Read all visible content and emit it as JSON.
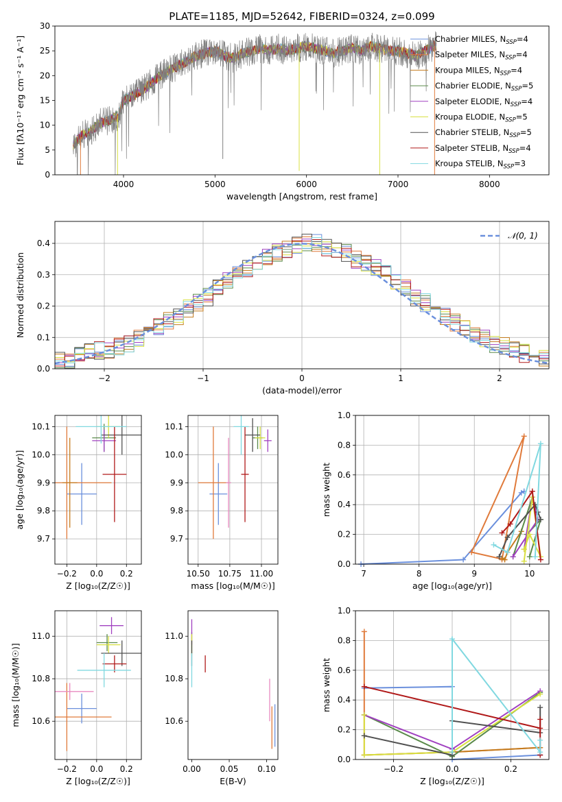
{
  "figure_title": "PLATE=1185, MJD=52642, FIBERID=0324, z=0.099",
  "colors": {
    "Chabrier MILES": "#6a8fdc",
    "Salpeter MILES": "#e07a3a",
    "Kroupa MILES": "#c47c1f",
    "Chabrier ELODIE": "#5a8a4a",
    "Salpeter ELODIE": "#a040c0",
    "Kroupa ELODIE": "#d8e040",
    "Chabrier STELIB": "#505050",
    "Salpeter STELIB": "#b01818",
    "Kroupa STELIB": "#80d8e0",
    "normal": "#6a8fdc",
    "pink": "#e88ac0"
  },
  "chart_data": [
    {
      "panel": "spectrum",
      "type": "line",
      "title": "PLATE=1185, MJD=52642, FIBERID=0324, z=0.099",
      "xlabel": "wavelength [Angstrom, rest frame]",
      "ylabel": "Flux [fλ10⁻¹⁷ erg cm⁻² s⁻¹ A⁻¹]",
      "xlim": [
        3250,
        8650
      ],
      "ylim": [
        0,
        30
      ],
      "xticks": [
        4000,
        5000,
        6000,
        7000,
        8000
      ],
      "yticks": [
        0,
        5,
        10,
        15,
        20,
        25,
        30
      ],
      "grid": false,
      "legend_position": "right",
      "continuum": {
        "x": [
          3450,
          3550,
          3650,
          3750,
          3850,
          3950,
          4000,
          4100,
          4200,
          4300,
          4400,
          4500,
          4600,
          4700,
          4800,
          4900,
          5000,
          5100,
          5200,
          5300,
          5400,
          5500,
          5600,
          5700,
          5800,
          5900,
          6000,
          6100,
          6200,
          6300,
          6400,
          6500,
          6600,
          6700,
          6800,
          6900,
          7000,
          7100,
          7200,
          7300,
          7400
        ],
        "y": [
          6,
          8,
          9,
          10.5,
          11,
          12,
          15,
          16,
          17,
          18.5,
          20,
          21,
          22,
          23,
          24,
          24.5,
          25,
          24,
          23.5,
          24.5,
          25,
          25.5,
          25,
          25.5,
          25,
          25.5,
          26,
          25.5,
          25,
          24.5,
          25,
          25.5,
          25,
          26,
          25.5,
          25,
          25,
          24.5,
          24,
          25,
          26
        ]
      },
      "series": [
        {
          "name": "Chabrier MILES, N_SSP=4",
          "label_main": "Chabrier MILES, N",
          "label_sub": "SSP",
          "label_tail": "=4"
        },
        {
          "name": "Salpeter MILES, N_SSP=4",
          "label_main": "Salpeter MILES, N",
          "label_sub": "SSP",
          "label_tail": "=4"
        },
        {
          "name": "Kroupa MILES, N_SSP=4",
          "label_main": "Kroupa MILES, N",
          "label_sub": "SSP",
          "label_tail": "=4"
        },
        {
          "name": "Chabrier ELODIE, N_SSP=5",
          "label_main": "Chabrier ELODIE, N",
          "label_sub": "SSP",
          "label_tail": "=5"
        },
        {
          "name": "Salpeter ELODIE, N_SSP=4",
          "label_main": "Salpeter ELODIE, N",
          "label_sub": "SSP",
          "label_tail": "=4"
        },
        {
          "name": "Kroupa ELODIE, N_SSP=5",
          "label_main": "Kroupa ELODIE, N",
          "label_sub": "SSP",
          "label_tail": "=5"
        },
        {
          "name": "Chabrier STELIB, N_SSP=5",
          "label_main": "Chabrier STELIB, N",
          "label_sub": "SSP",
          "label_tail": "=5"
        },
        {
          "name": "Salpeter STELIB, N_SSP=4",
          "label_main": "Salpeter STELIB, N",
          "label_sub": "SSP",
          "label_tail": "=4"
        },
        {
          "name": "Kroupa STELIB, N_SSP=3",
          "label_main": "Kroupa STELIB, N",
          "label_sub": "SSP",
          "label_tail": "=3"
        }
      ]
    },
    {
      "panel": "residuals",
      "type": "histogram",
      "xlabel": "(data-model)/error",
      "ylabel": "Normed distribution",
      "xlim": [
        -2.5,
        2.5
      ],
      "ylim": [
        0,
        0.47
      ],
      "xticks": [
        -2,
        -1,
        0,
        1,
        2
      ],
      "xtick_labels": [
        "−2",
        "−1",
        "0",
        "1",
        "2"
      ],
      "yticks": [
        0.0,
        0.1,
        0.2,
        0.3,
        0.4
      ],
      "grid": true,
      "legend": "𝒩(0, 1)",
      "legend_position": "top-right",
      "bin_edges_start": -2.5,
      "bin_width": 0.1,
      "bin_values_approx": [
        0.03,
        0.03,
        0.04,
        0.05,
        0.06,
        0.06,
        0.07,
        0.08,
        0.1,
        0.12,
        0.13,
        0.15,
        0.17,
        0.19,
        0.21,
        0.23,
        0.26,
        0.28,
        0.3,
        0.32,
        0.34,
        0.36,
        0.37,
        0.38,
        0.39,
        0.4,
        0.4,
        0.39,
        0.38,
        0.37,
        0.35,
        0.34,
        0.32,
        0.3,
        0.28,
        0.26,
        0.23,
        0.21,
        0.19,
        0.17,
        0.15,
        0.13,
        0.11,
        0.1,
        0.08,
        0.07,
        0.06,
        0.05,
        0.04,
        0.03
      ]
    },
    {
      "panel": "age_vs_Z",
      "type": "errorbar",
      "xlabel": "Z [log₁₀(Z/Z☉)]",
      "ylabel": "age  [log₁₀(age/yr)]",
      "xlim": [
        -0.28,
        0.3
      ],
      "ylim": [
        9.61,
        10.14
      ],
      "xticks": [
        -0.2,
        0.0,
        0.2
      ],
      "xtick_labels": [
        "−0.2",
        "0.0",
        "0.2"
      ],
      "yticks": [
        9.7,
        9.8,
        9.9,
        10.0,
        10.1
      ],
      "grid": true,
      "points": [
        {
          "series": "Chabrier MILES",
          "x": -0.1,
          "y": 9.86,
          "xerr": 0.1,
          "yerr": 0.11
        },
        {
          "series": "Salpeter MILES",
          "x": -0.2,
          "y": 9.9,
          "xerr": 0.3,
          "yerr": 0.2
        },
        {
          "series": "Kroupa MILES",
          "x": -0.18,
          "y": 9.9,
          "xerr": 0.05,
          "yerr": 0.16
        },
        {
          "series": "Chabrier ELODIE",
          "x": 0.05,
          "y": 10.06,
          "xerr": 0.08,
          "yerr": 0.05
        },
        {
          "series": "Salpeter ELODIE",
          "x": 0.05,
          "y": 10.05,
          "xerr": 0.08,
          "yerr": 0.04
        },
        {
          "series": "Kroupa ELODIE",
          "x": 0.08,
          "y": 10.1,
          "xerr": 0.08,
          "yerr": 0.04
        },
        {
          "series": "Chabrier STELIB",
          "x": 0.17,
          "y": 10.07,
          "xerr": 0.14,
          "yerr": 0.07
        },
        {
          "series": "Salpeter STELIB",
          "x": 0.12,
          "y": 9.93,
          "xerr": 0.08,
          "yerr": 0.17
        },
        {
          "series": "Kroupa STELIB",
          "x": 0.03,
          "y": 10.1,
          "xerr": 0.17,
          "yerr": 0.06
        }
      ]
    },
    {
      "panel": "age_vs_mass",
      "type": "errorbar",
      "xlabel": "mass [log₁₀(M/M☉)]",
      "ylabel": "",
      "xlim": [
        10.42,
        11.13
      ],
      "ylim": [
        9.61,
        10.14
      ],
      "xticks": [
        10.5,
        10.75,
        11.0
      ],
      "xtick_labels": [
        "10.50",
        "10.75",
        "11.00"
      ],
      "yticks": [
        9.7,
        9.8,
        9.9,
        10.0,
        10.1
      ],
      "grid": true,
      "points": [
        {
          "series": "Chabrier MILES",
          "x": 10.66,
          "y": 9.86,
          "xerr": 0.07,
          "yerr": 0.11
        },
        {
          "series": "Salpeter MILES",
          "x": 10.62,
          "y": 9.9,
          "xerr": 0.12,
          "yerr": 0.2
        },
        {
          "series": "pink",
          "x": 10.74,
          "y": 9.9,
          "xerr": 0.02,
          "yerr": 0.16
        },
        {
          "series": "Chabrier ELODIE",
          "x": 10.97,
          "y": 10.06,
          "xerr": 0.04,
          "yerr": 0.04
        },
        {
          "series": "Salpeter ELODIE",
          "x": 11.05,
          "y": 10.05,
          "xerr": 0.03,
          "yerr": 0.04
        },
        {
          "series": "Kroupa ELODIE",
          "x": 10.99,
          "y": 10.06,
          "xerr": 0.04,
          "yerr": 0.04
        },
        {
          "series": "Chabrier STELIB",
          "x": 10.93,
          "y": 10.07,
          "xerr": 0.06,
          "yerr": 0.06
        },
        {
          "series": "Salpeter STELIB",
          "x": 10.87,
          "y": 9.93,
          "xerr": 0.03,
          "yerr": 0.17
        },
        {
          "series": "Kroupa STELIB",
          "x": 10.84,
          "y": 10.1,
          "xerr": 0.06,
          "yerr": 0.1
        }
      ]
    },
    {
      "panel": "weight_vs_age",
      "type": "line",
      "xlabel": "age  [log₁₀(age/yr)]",
      "ylabel": "mass weight",
      "xlim": [
        6.85,
        10.35
      ],
      "ylim": [
        0,
        1
      ],
      "xticks": [
        7,
        8,
        9,
        10
      ],
      "yticks": [
        0.0,
        0.2,
        0.4,
        0.6,
        0.8,
        1.0
      ],
      "grid": true,
      "series": [
        {
          "name": "Chabrier MILES",
          "x": [
            6.95,
            8.8,
            9.85,
            9.9
          ],
          "y": [
            0.0,
            0.03,
            0.48,
            0.49
          ]
        },
        {
          "name": "Salpeter MILES",
          "x": [
            9.55,
            8.95,
            9.9,
            9.5
          ],
          "y": [
            0.03,
            0.08,
            0.86,
            0.03
          ]
        },
        {
          "name": "Kroupa MILES",
          "x": [
            9.5,
            9.55,
            9.6,
            9.85
          ],
          "y": [
            0.04,
            0.03,
            0.08,
            0.22
          ]
        },
        {
          "name": "Chabrier ELODIE",
          "x": [
            9.7,
            10.05,
            9.95,
            10.2,
            10.0
          ],
          "y": [
            0.05,
            0.45,
            0.2,
            0.3,
            0.05
          ]
        },
        {
          "name": "Salpeter ELODIE",
          "x": [
            9.9,
            10.05,
            10.15,
            9.7
          ],
          "y": [
            0.1,
            0.45,
            0.3,
            0.05
          ]
        },
        {
          "name": "Kroupa ELODIE",
          "x": [
            9.9,
            10.05,
            10.2,
            10.0,
            9.9
          ],
          "y": [
            0.02,
            0.45,
            0.05,
            0.2,
            0.1
          ]
        },
        {
          "name": "Chabrier STELIB",
          "x": [
            9.45,
            9.6,
            10.1,
            10.2,
            10.15
          ],
          "y": [
            0.05,
            0.18,
            0.4,
            0.3,
            0.35
          ]
        },
        {
          "name": "Salpeter STELIB",
          "x": [
            9.5,
            9.65,
            10.05,
            10.2
          ],
          "y": [
            0.21,
            0.27,
            0.49,
            0.03
          ]
        },
        {
          "name": "Kroupa STELIB",
          "x": [
            9.35,
            9.6,
            10.2,
            10.1
          ],
          "y": [
            0.13,
            0.08,
            0.81,
            0.05
          ]
        }
      ]
    },
    {
      "panel": "mass_vs_Z",
      "type": "errorbar",
      "xlabel": "Z [log₁₀(Z/Z☉)]",
      "ylabel": "mass [log₁₀(M/M☉)]",
      "xlim": [
        -0.28,
        0.3
      ],
      "ylim": [
        10.42,
        11.12
      ],
      "xticks": [
        -0.2,
        0.0,
        0.2
      ],
      "xtick_labels": [
        "−0.2",
        "0.0",
        "0.2"
      ],
      "yticks": [
        10.6,
        10.8,
        11.0
      ],
      "grid": true,
      "points": [
        {
          "series": "Chabrier MILES",
          "x": -0.1,
          "y": 10.66,
          "xerr": 0.1,
          "yerr": 0.07
        },
        {
          "series": "Salpeter MILES",
          "x": -0.2,
          "y": 10.62,
          "xerr": 0.3,
          "yerr": 0.16
        },
        {
          "series": "pink",
          "x": -0.18,
          "y": 10.74,
          "xerr": 0.16,
          "yerr": 0.04
        },
        {
          "series": "Chabrier ELODIE",
          "x": 0.07,
          "y": 10.97,
          "xerr": 0.07,
          "yerr": 0.04
        },
        {
          "series": "Salpeter ELODIE",
          "x": 0.1,
          "y": 11.05,
          "xerr": 0.08,
          "yerr": 0.04
        },
        {
          "series": "Kroupa ELODIE",
          "x": 0.08,
          "y": 10.96,
          "xerr": 0.08,
          "yerr": 0.04
        },
        {
          "series": "Chabrier STELIB",
          "x": 0.17,
          "y": 10.92,
          "xerr": 0.14,
          "yerr": 0.06
        },
        {
          "series": "Salpeter STELIB",
          "x": 0.12,
          "y": 10.87,
          "xerr": 0.08,
          "yerr": 0.04
        },
        {
          "series": "Kroupa STELIB",
          "x": 0.05,
          "y": 10.84,
          "xerr": 0.18,
          "yerr": 0.08
        }
      ]
    },
    {
      "panel": "mass_vs_EBV",
      "type": "errorbar",
      "xlabel": "E(B-V)",
      "ylabel": "",
      "xlim": [
        -0.005,
        0.115
      ],
      "ylim": [
        10.42,
        11.12
      ],
      "xticks": [
        0.0,
        0.05,
        0.1
      ],
      "xtick_labels": [
        "0.00",
        "0.05",
        "0.10"
      ],
      "yticks": [
        10.6,
        10.8,
        11.0
      ],
      "grid": false,
      "points": [
        {
          "series": "Chabrier MILES",
          "x": 0.111,
          "y": 10.58,
          "xerr": 0,
          "yerr": 0.1
        },
        {
          "series": "Salpeter MILES",
          "x": 0.107,
          "y": 10.57,
          "xerr": 0,
          "yerr": 0.1
        },
        {
          "series": "pink",
          "x": 0.104,
          "y": 10.7,
          "xerr": 0,
          "yerr": 0.1
        },
        {
          "series": "Chabrier ELODIE",
          "x": 0.0,
          "y": 10.97,
          "xerr": 0,
          "yerr": 0.05
        },
        {
          "series": "Salpeter ELODIE",
          "x": 0.0,
          "y": 11.02,
          "xerr": 0,
          "yerr": 0.06
        },
        {
          "series": "Kroupa ELODIE",
          "x": 0.0,
          "y": 10.96,
          "xerr": 0,
          "yerr": 0.05
        },
        {
          "series": "Chabrier STELIB",
          "x": 0.0,
          "y": 10.92,
          "xerr": 0,
          "yerr": 0.06
        },
        {
          "series": "Salpeter STELIB",
          "x": 0.018,
          "y": 10.87,
          "xerr": 0,
          "yerr": 0.04
        },
        {
          "series": "Kroupa STELIB",
          "x": 0.0,
          "y": 10.84,
          "xerr": 0,
          "yerr": 0.08
        }
      ]
    },
    {
      "panel": "weight_vs_Z",
      "type": "line",
      "xlabel": "Z [log₁₀(Z/Z☉)]",
      "ylabel": "mass weight",
      "xlim": [
        -0.33,
        0.33
      ],
      "ylim": [
        0,
        1
      ],
      "xticks": [
        -0.2,
        0.0,
        0.2
      ],
      "xtick_labels": [
        "−0.2",
        "0.0",
        "0.2"
      ],
      "yticks": [
        0.0,
        0.2,
        0.4,
        0.6,
        0.8,
        1.0
      ],
      "grid": true,
      "series": [
        {
          "name": "Chabrier MILES",
          "x": [
            -0.3,
            0.0,
            0.0,
            0.3
          ],
          "y": [
            0.48,
            0.49,
            0.0,
            0.03
          ]
        },
        {
          "name": "Salpeter MILES",
          "x": [
            -0.3,
            -0.3,
            0.0,
            0.3
          ],
          "y": [
            0.86,
            0.03,
            0.05,
            0.08
          ]
        },
        {
          "name": "Kroupa MILES",
          "x": [
            -0.3,
            0.0,
            0.3
          ],
          "y": [
            0.03,
            0.05,
            0.08
          ]
        },
        {
          "name": "Chabrier ELODIE",
          "x": [
            -0.3,
            0.0,
            0.3
          ],
          "y": [
            0.3,
            0.02,
            0.45
          ]
        },
        {
          "name": "Salpeter ELODIE",
          "x": [
            -0.3,
            0.0,
            0.3
          ],
          "y": [
            0.3,
            0.07,
            0.46
          ]
        },
        {
          "name": "Kroupa ELODIE",
          "x": [
            -0.3,
            -0.3,
            0.0,
            0.3
          ],
          "y": [
            0.3,
            0.03,
            0.05,
            0.44
          ]
        },
        {
          "name": "Chabrier STELIB",
          "x": [
            -0.3,
            0.0,
            0.0,
            0.3,
            0.3
          ],
          "y": [
            0.16,
            0.03,
            0.26,
            0.18,
            0.35
          ]
        },
        {
          "name": "Salpeter STELIB",
          "x": [
            -0.3,
            0.3,
            0.3,
            0.3
          ],
          "y": [
            0.49,
            0.21,
            0.27,
            0.03
          ]
        },
        {
          "name": "Kroupa STELIB",
          "x": [
            0.0,
            0.0,
            0.3,
            0.3
          ],
          "y": [
            0.05,
            0.81,
            0.05,
            0.13
          ]
        }
      ]
    }
  ]
}
